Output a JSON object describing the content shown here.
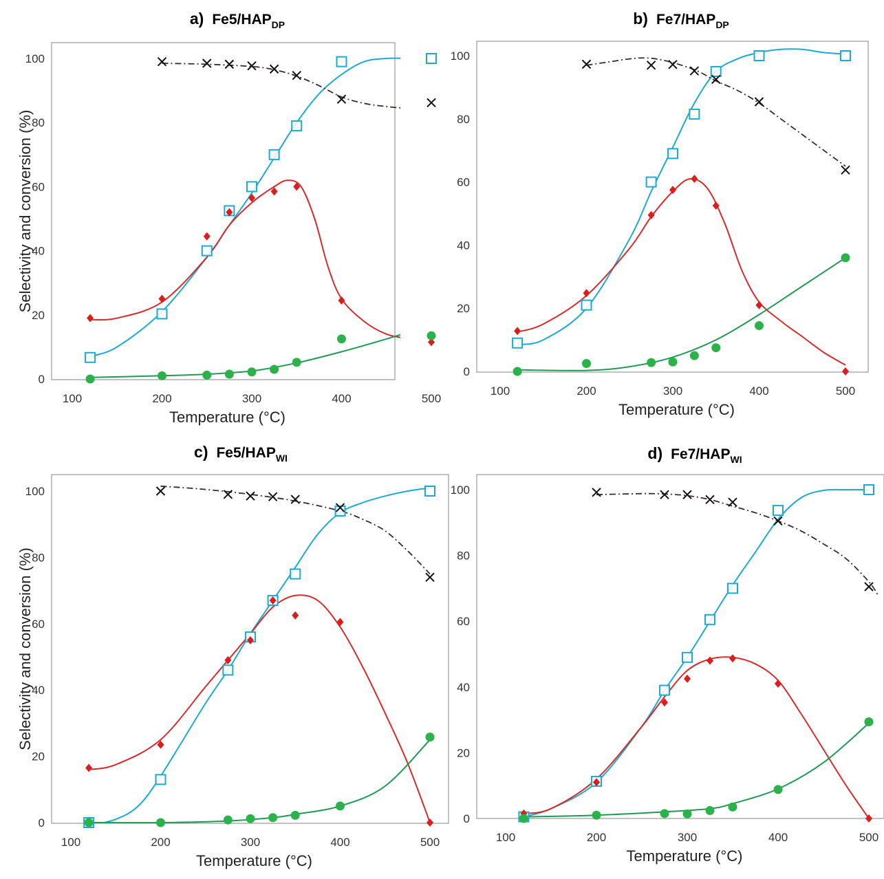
{
  "colors": {
    "conversion": "#1aaad4",
    "selectivity_red": "#dd1c1c",
    "selectivity_green": "#2bb24a",
    "selectivity_black": "#111111",
    "red_curve": "#d82a2a",
    "green_curve": "#1e9a52",
    "axis": "#999999"
  },
  "chart_data": [
    {
      "type": "scatter",
      "panel_letter": "a)",
      "title": "Fe5/HAP",
      "title_subscript": "DP",
      "xlabel": "Temperature (°C)",
      "ylabel": "Selectivity and conversion (%)",
      "xlim": [
        100,
        520
      ],
      "ylim": [
        0,
        105
      ],
      "xticks": [
        100,
        200,
        300,
        400,
        500
      ],
      "yticks": [
        0,
        20,
        40,
        60,
        80,
        100
      ],
      "series": [
        {
          "marker": "open-square",
          "x": [
            120,
            200,
            250,
            275,
            300,
            325,
            350,
            400,
            500
          ],
          "y": [
            6.7,
            20.3,
            40,
            52.5,
            60,
            70,
            79,
            99,
            100
          ],
          "curve_x": [
            120,
            150,
            200,
            250,
            275,
            300,
            325,
            350,
            375,
            400,
            425,
            450,
            475,
            500
          ],
          "curve_y": [
            7,
            10,
            21,
            38,
            48,
            58,
            69,
            80,
            89,
            95,
            99,
            100,
            100,
            100
          ]
        },
        {
          "marker": "filled-diamond",
          "x": [
            120,
            200,
            250,
            275,
            300,
            325,
            350,
            400,
            500
          ],
          "y": [
            19,
            25,
            44.5,
            52,
            56.5,
            58.5,
            60,
            24.5,
            11.5
          ],
          "curve_x": [
            120,
            150,
            200,
            250,
            275,
            300,
            325,
            340,
            355,
            370,
            385,
            400,
            425,
            450,
            475,
            500
          ],
          "curve_y": [
            18.5,
            19,
            24,
            38,
            48,
            55,
            60,
            62,
            60,
            50,
            35,
            25,
            18,
            14,
            12.5,
            11
          ]
        },
        {
          "marker": "filled-circle",
          "x": [
            120,
            200,
            250,
            275,
            300,
            325,
            350,
            400,
            500
          ],
          "y": [
            0,
            1,
            1.2,
            1.5,
            2.2,
            3,
            5.2,
            12.5,
            13.5
          ],
          "curve_x": [
            120,
            200,
            250,
            300,
            350,
            400,
            450,
            500
          ],
          "curve_y": [
            0.5,
            1,
            1.5,
            2.5,
            5,
            8.5,
            12.5,
            16.8
          ]
        },
        {
          "marker": "x-cross",
          "x": [
            200,
            250,
            275,
            300,
            325,
            350,
            400,
            500
          ],
          "y": [
            99,
            98.5,
            98.2,
            97.7,
            96.7,
            94.7,
            87.3,
            86.2
          ],
          "curve_x": [
            200,
            250,
            300,
            325,
            350,
            375,
            400,
            425,
            450,
            475,
            500
          ],
          "curve_y": [
            98.5,
            98.2,
            97.5,
            96.5,
            94.5,
            91.5,
            88,
            86,
            85,
            84.5,
            85
          ]
        }
      ]
    },
    {
      "type": "scatter",
      "panel_letter": "b)",
      "title": "Fe7/HAP",
      "title_subscript": "DP",
      "xlabel": "Temperature (°C)",
      "ylabel": "",
      "xlim": [
        100,
        520
      ],
      "ylim": [
        0,
        102
      ],
      "xticks": [
        100,
        200,
        300,
        400,
        500
      ],
      "yticks": [
        0,
        20,
        40,
        60,
        80,
        100
      ],
      "series": [
        {
          "marker": "open-square",
          "x": [
            120,
            200,
            275,
            300,
            325,
            350,
            400,
            500
          ],
          "y": [
            9,
            21,
            60,
            69,
            81.5,
            95,
            100,
            100
          ],
          "curve_x": [
            120,
            150,
            200,
            250,
            275,
            300,
            325,
            350,
            375,
            400,
            425,
            450,
            475,
            500
          ],
          "curve_y": [
            8.5,
            10,
            20,
            42,
            57,
            71,
            85,
            95,
            99,
            101,
            102,
            102,
            101,
            100.5
          ]
        },
        {
          "marker": "filled-diamond",
          "x": [
            120,
            200,
            275,
            300,
            325,
            350,
            400,
            500
          ],
          "y": [
            12.8,
            24.8,
            49.5,
            57.5,
            61,
            52.5,
            21,
            0
          ],
          "curve_x": [
            120,
            150,
            200,
            250,
            275,
            300,
            320,
            340,
            360,
            380,
            400,
            425,
            450,
            475,
            500
          ],
          "curve_y": [
            12.5,
            15,
            24,
            39,
            49,
            57,
            61,
            58,
            47,
            32,
            22,
            16,
            11,
            6,
            2
          ]
        },
        {
          "marker": "filled-circle",
          "x": [
            120,
            200,
            275,
            300,
            325,
            350,
            400,
            500
          ],
          "y": [
            0,
            2.5,
            2.8,
            3,
            5,
            7.5,
            14.5,
            36
          ],
          "curve_x": [
            120,
            200,
            250,
            300,
            350,
            400,
            450,
            500
          ],
          "curve_y": [
            0.5,
            0.3,
            1.5,
            4.5,
            10,
            18,
            27,
            36
          ]
        },
        {
          "marker": "x-cross",
          "x": [
            200,
            275,
            300,
            325,
            350,
            400,
            500
          ],
          "y": [
            97.3,
            97,
            97.2,
            95.2,
            92.5,
            85.4,
            63.8
          ],
          "curve_x": [
            200,
            225,
            250,
            270,
            290,
            310,
            330,
            350,
            375,
            400,
            425,
            450,
            475,
            500
          ],
          "curve_y": [
            97,
            98,
            99,
            99.3,
            98.5,
            97,
            95,
            92,
            89,
            85,
            80,
            75,
            70,
            65
          ]
        }
      ]
    },
    {
      "type": "scatter",
      "panel_letter": "c)",
      "title": "Fe5/HAP",
      "title_subscript": "WI",
      "xlabel": "Temperature (°C)",
      "ylabel": "Selectivity and conversion (%)",
      "xlim": [
        100,
        520
      ],
      "ylim": [
        0,
        105
      ],
      "xticks": [
        100,
        200,
        300,
        400,
        500
      ],
      "yticks": [
        0,
        20,
        40,
        60,
        80,
        100
      ],
      "series": [
        {
          "marker": "open-square",
          "x": [
            120,
            200,
            275,
            300,
            325,
            350,
            400,
            500
          ],
          "y": [
            0,
            13,
            46,
            56,
            67,
            75,
            94,
            100
          ],
          "curve_x": [
            120,
            150,
            175,
            200,
            250,
            275,
            300,
            325,
            350,
            375,
            400,
            425,
            450,
            475,
            500
          ],
          "curve_y": [
            -1,
            1,
            5,
            14,
            36,
            46,
            57,
            67,
            77,
            87,
            93.5,
            96.5,
            98.5,
            100,
            101
          ]
        },
        {
          "marker": "filled-diamond",
          "x": [
            120,
            200,
            275,
            300,
            325,
            350,
            400,
            500
          ],
          "y": [
            16.5,
            23.5,
            49,
            55,
            67,
            62.5,
            60.5,
            0
          ],
          "curve_x": [
            120,
            150,
            200,
            250,
            275,
            300,
            325,
            350,
            375,
            400,
            425,
            450,
            475,
            500
          ],
          "curve_y": [
            16,
            17.5,
            25,
            41,
            49,
            57,
            65,
            68.5,
            67,
            59,
            47,
            33,
            18,
            0
          ]
        },
        {
          "marker": "filled-circle",
          "x": [
            120,
            200,
            275,
            300,
            325,
            350,
            400,
            500
          ],
          "y": [
            0,
            0,
            0.8,
            1.2,
            1.5,
            2.2,
            5,
            25.8
          ],
          "curve_x": [
            120,
            200,
            275,
            325,
            350,
            400,
            450,
            500
          ],
          "curve_y": [
            0,
            0,
            0.5,
            1.5,
            2.5,
            5,
            11,
            25
          ]
        },
        {
          "marker": "x-cross",
          "x": [
            200,
            275,
            300,
            325,
            350,
            400,
            500
          ],
          "y": [
            100,
            99,
            98.5,
            98.3,
            97.5,
            95,
            74
          ],
          "curve_x": [
            200,
            250,
            300,
            350,
            400,
            425,
            450,
            475,
            500
          ],
          "curve_y": [
            101.5,
            100.5,
            99,
            97,
            94,
            91.5,
            88,
            82,
            75
          ]
        }
      ]
    },
    {
      "type": "scatter",
      "panel_letter": "d)",
      "title": "Fe7/HAP",
      "title_subscript": "WI",
      "xlabel": "Temperature (°C)",
      "ylabel": "",
      "xlim": [
        100,
        520
      ],
      "ylim": [
        0,
        105
      ],
      "xticks": [
        100,
        200,
        300,
        400,
        500
      ],
      "yticks": [
        0,
        20,
        40,
        60,
        80,
        100
      ],
      "series": [
        {
          "marker": "open-square",
          "x": [
            120,
            200,
            275,
            300,
            325,
            350,
            400,
            500
          ],
          "y": [
            0.5,
            11.3,
            39,
            49,
            60.5,
            70,
            93.7,
            100
          ],
          "curve_x": [
            120,
            150,
            200,
            250,
            275,
            300,
            325,
            350,
            375,
            400,
            425,
            450,
            475,
            500
          ],
          "curve_y": [
            0.5,
            3,
            11,
            28,
            39,
            49,
            60,
            71,
            81,
            91,
            97.5,
            99.8,
            100,
            100
          ]
        },
        {
          "marker": "filled-diamond",
          "x": [
            120,
            200,
            275,
            300,
            325,
            350,
            400,
            500
          ],
          "y": [
            1.5,
            11,
            35.3,
            42.5,
            48,
            48.7,
            41,
            0
          ],
          "curve_x": [
            120,
            150,
            200,
            250,
            275,
            300,
            325,
            350,
            375,
            400,
            425,
            450,
            475,
            500
          ],
          "curve_y": [
            1.5,
            3,
            12,
            28,
            37,
            45,
            48.5,
            49,
            47,
            42,
            32,
            21,
            10,
            0
          ]
        },
        {
          "marker": "filled-circle",
          "x": [
            120,
            200,
            275,
            300,
            325,
            350,
            400,
            500
          ],
          "y": [
            0,
            1,
            1.5,
            1.4,
            2.4,
            3.5,
            8.8,
            29.4
          ],
          "curve_x": [
            120,
            200,
            275,
            325,
            350,
            400,
            450,
            500
          ],
          "curve_y": [
            0.5,
            1,
            2,
            3,
            4.5,
            9,
            17,
            29
          ]
        },
        {
          "marker": "x-cross",
          "x": [
            200,
            275,
            300,
            325,
            350,
            400,
            500
          ],
          "y": [
            99.2,
            98.5,
            98.5,
            97,
            96.2,
            90.5,
            70.5
          ],
          "curve_x": [
            200,
            250,
            275,
            300,
            325,
            350,
            375,
            400,
            425,
            450,
            475,
            500,
            510
          ],
          "curve_y": [
            98.5,
            98.8,
            98.7,
            98.2,
            97,
            95,
            93,
            90.5,
            87.5,
            83.5,
            79,
            72,
            68
          ]
        }
      ]
    }
  ]
}
